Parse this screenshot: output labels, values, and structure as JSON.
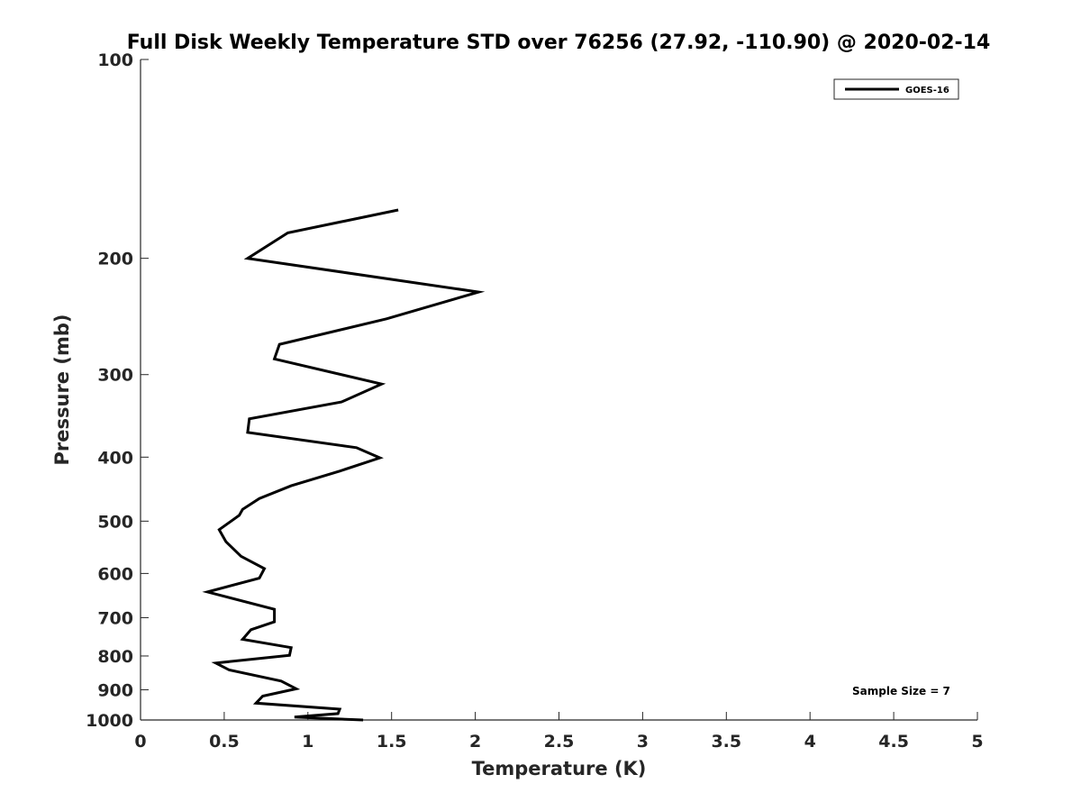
{
  "chart_data": {
    "type": "line",
    "title": "Full Disk Weekly Temperature STD over 76256 (27.92, -110.90) @ 2020-02-14",
    "xlabel": "Temperature (K)",
    "ylabel": "Pressure (mb)",
    "xlim": [
      0,
      5
    ],
    "ylim": [
      100,
      1000
    ],
    "yscale": "log",
    "y_reversed": true,
    "xticks": [
      "0",
      "0.5",
      "1",
      "1.5",
      "2",
      "2.5",
      "3",
      "3.5",
      "4",
      "4.5",
      "5"
    ],
    "yticks": [
      "100",
      "200",
      "300",
      "400",
      "500",
      "600",
      "700",
      "800",
      "900",
      "1000"
    ],
    "grid": false,
    "legend_position": "top-right",
    "annotation": "Sample Size = 7",
    "series": [
      {
        "name": "GOES-16",
        "color": "#000000",
        "x": [
          1.54,
          0.88,
          0.64,
          2.02,
          1.47,
          0.83,
          0.8,
          1.44,
          1.2,
          0.65,
          0.64,
          1.29,
          1.43,
          1.19,
          0.9,
          0.71,
          0.61,
          0.59,
          0.47,
          0.51,
          0.6,
          0.74,
          0.71,
          0.4,
          0.8,
          0.8,
          0.66,
          0.61,
          0.9,
          0.89,
          0.45,
          0.53,
          0.84,
          0.93,
          0.73,
          0.69,
          1.19,
          1.18,
          0.92,
          1.33
        ],
        "y": [
          169,
          183,
          200,
          225,
          247,
          270,
          284,
          310,
          330,
          350,
          367,
          387,
          401,
          420,
          442,
          462,
          480,
          490,
          515,
          537,
          565,
          590,
          610,
          640,
          680,
          710,
          730,
          755,
          777,
          798,
          820,
          840,
          873,
          897,
          920,
          943,
          963,
          978,
          990,
          1000
        ]
      }
    ]
  }
}
